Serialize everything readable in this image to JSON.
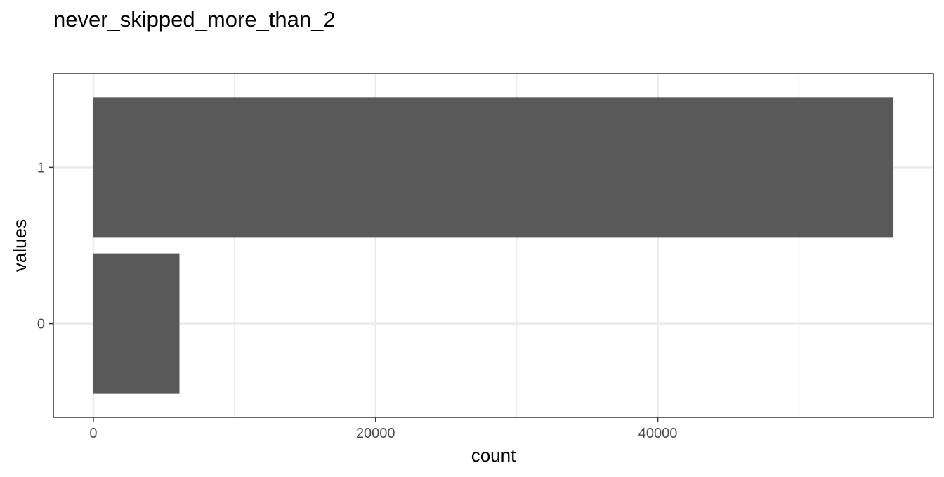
{
  "chart_data": {
    "type": "bar",
    "orientation": "horizontal",
    "title": "never_skipped_more_than_2",
    "xlabel": "count",
    "ylabel": "values",
    "categories": [
      "0",
      "1"
    ],
    "values": [
      6100,
      56700
    ],
    "xlim": [
      -2835,
      59535
    ],
    "xticks": [
      0,
      20000,
      40000
    ],
    "x_minor_gridlines": [
      10000,
      30000,
      50000
    ],
    "grid": true,
    "legend": "none",
    "colors": {
      "bar": "#595959",
      "grid": "#ebebeb",
      "panel_border": "#333333",
      "background": "#ffffff"
    }
  }
}
